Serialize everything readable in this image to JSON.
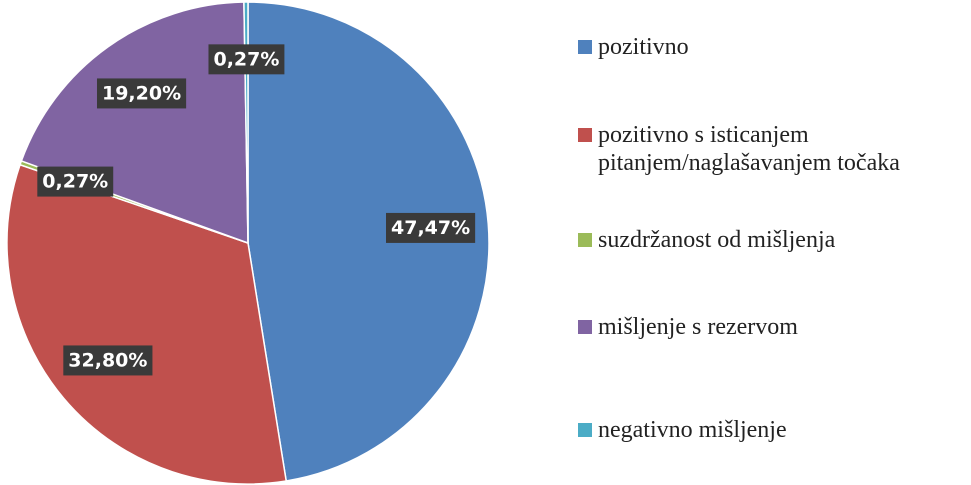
{
  "chart_data": {
    "type": "pie",
    "categories": [
      "pozitivno",
      "pozitivno s isticanjem pitanjem/naglašavanjem točaka",
      "suzdržanost od mišljenja",
      "mišljenje s rezervom",
      "negativno mišljenje"
    ],
    "values": [
      47.47,
      32.8,
      0.27,
      19.2,
      0.27
    ],
    "value_labels": [
      "47,47%",
      "32,80%",
      "0,27%",
      "19,20%",
      "0,27%"
    ],
    "colors": [
      "#4f81bd",
      "#c0504d",
      "#9bbb59",
      "#8064a2",
      "#4bacc6"
    ],
    "legend": "right"
  }
}
